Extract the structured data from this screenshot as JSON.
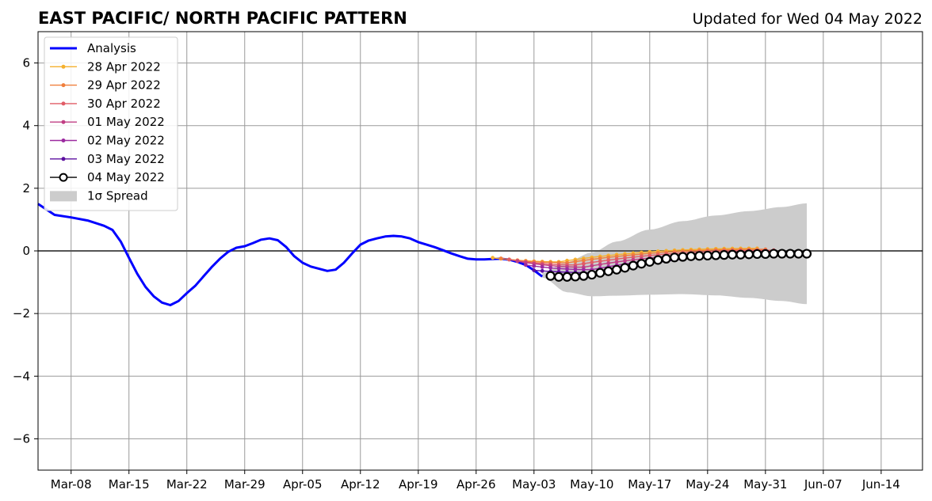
{
  "chart_data": {
    "type": "line",
    "title": "EAST PACIFIC/ NORTH PACIFIC PATTERN",
    "subtitle": "Updated for Wed 04 May 2022",
    "xlabel": "",
    "ylabel": "",
    "x_start": "2022-03-04",
    "x_end": "2022-06-19",
    "xticks": [
      "Mar-08",
      "Mar-15",
      "Mar-22",
      "Mar-29",
      "Apr-05",
      "Apr-12",
      "Apr-19",
      "Apr-26",
      "May-03",
      "May-10",
      "May-17",
      "May-24",
      "May-31",
      "Jun-07",
      "Jun-14"
    ],
    "xtick_dates": [
      "2022-03-08",
      "2022-03-15",
      "2022-03-22",
      "2022-03-29",
      "2022-04-05",
      "2022-04-12",
      "2022-04-19",
      "2022-04-26",
      "2022-05-03",
      "2022-05-10",
      "2022-05-17",
      "2022-05-24",
      "2022-05-31",
      "2022-06-07",
      "2022-06-14"
    ],
    "ylim": [
      -7,
      7
    ],
    "yticks": [
      -6,
      -4,
      -2,
      0,
      2,
      4,
      6
    ],
    "ytick_labels": [
      "−6",
      "−4",
      "−2",
      "0",
      "2",
      "4",
      "6"
    ],
    "grid": true,
    "legend_position": "top-left",
    "analysis": {
      "name": "Analysis",
      "color": "#0000ff",
      "dates": [
        "2022-03-04",
        "2022-03-06",
        "2022-03-08",
        "2022-03-10",
        "2022-03-12",
        "2022-03-13",
        "2022-03-14",
        "2022-03-15",
        "2022-03-16",
        "2022-03-17",
        "2022-03-18",
        "2022-03-19",
        "2022-03-20",
        "2022-03-21",
        "2022-03-22",
        "2022-03-23",
        "2022-03-24",
        "2022-03-25",
        "2022-03-26",
        "2022-03-27",
        "2022-03-28",
        "2022-03-29",
        "2022-03-30",
        "2022-03-31",
        "2022-04-01",
        "2022-04-02",
        "2022-04-03",
        "2022-04-04",
        "2022-04-05",
        "2022-04-06",
        "2022-04-07",
        "2022-04-08",
        "2022-04-09",
        "2022-04-10",
        "2022-04-11",
        "2022-04-12",
        "2022-04-13",
        "2022-04-14",
        "2022-04-15",
        "2022-04-16",
        "2022-04-17",
        "2022-04-18",
        "2022-04-19",
        "2022-04-20",
        "2022-04-21",
        "2022-04-22",
        "2022-04-23",
        "2022-04-24",
        "2022-04-25",
        "2022-04-26",
        "2022-04-27",
        "2022-04-28",
        "2022-04-29",
        "2022-04-30",
        "2022-05-01",
        "2022-05-02",
        "2022-05-03",
        "2022-05-04"
      ],
      "values": [
        1.5,
        1.15,
        1.07,
        0.97,
        0.8,
        0.67,
        0.3,
        -0.22,
        -0.73,
        -1.15,
        -1.45,
        -1.65,
        -1.73,
        -1.6,
        -1.35,
        -1.12,
        -0.82,
        -0.52,
        -0.25,
        -0.03,
        0.1,
        0.15,
        0.25,
        0.36,
        0.4,
        0.34,
        0.13,
        -0.17,
        -0.38,
        -0.5,
        -0.57,
        -0.64,
        -0.6,
        -0.38,
        -0.08,
        0.2,
        0.33,
        0.4,
        0.46,
        0.48,
        0.46,
        0.4,
        0.28,
        0.2,
        0.12,
        0.02,
        -0.08,
        -0.17,
        -0.25,
        -0.27,
        -0.27,
        -0.26,
        -0.25,
        -0.28,
        -0.35,
        -0.45,
        -0.62,
        -0.82
      ]
    },
    "forecasts": [
      {
        "name": "28 Apr 2022",
        "color": "#f5b12e",
        "start": "2022-04-28",
        "end": "2022-05-30",
        "start_value": -0.22,
        "min_value": -0.35,
        "end_value": 0.08
      },
      {
        "name": "29 Apr 2022",
        "color": "#f07f3c",
        "start": "2022-04-29",
        "end": "2022-05-31",
        "start_value": -0.24,
        "min_value": -0.38,
        "end_value": 0.05
      },
      {
        "name": "30 Apr 2022",
        "color": "#e15c66",
        "start": "2022-04-30",
        "end": "2022-06-01",
        "start_value": -0.28,
        "min_value": -0.45,
        "end_value": 0.02
      },
      {
        "name": "01 May 2022",
        "color": "#c13f84",
        "start": "2022-05-01",
        "end": "2022-06-02",
        "start_value": -0.33,
        "min_value": -0.52,
        "end_value": -0.02
      },
      {
        "name": "02 May 2022",
        "color": "#9c2aa0",
        "start": "2022-05-02",
        "end": "2022-06-03",
        "start_value": -0.45,
        "min_value": -0.6,
        "end_value": -0.05
      },
      {
        "name": "03 May 2022",
        "color": "#5c10a0",
        "start": "2022-05-03",
        "end": "2022-06-04",
        "start_value": -0.62,
        "min_value": -0.7,
        "end_value": -0.07
      },
      {
        "name": "04 May 2022",
        "color": "#000000",
        "start": "2022-05-05",
        "end": "2022-06-05",
        "values": [
          -0.8,
          -0.83,
          -0.83,
          -0.82,
          -0.8,
          -0.76,
          -0.7,
          -0.65,
          -0.6,
          -0.54,
          -0.47,
          -0.41,
          -0.35,
          -0.29,
          -0.25,
          -0.21,
          -0.19,
          -0.17,
          -0.16,
          -0.15,
          -0.14,
          -0.13,
          -0.12,
          -0.12,
          -0.11,
          -0.1,
          -0.1,
          -0.09,
          -0.09,
          -0.09,
          -0.09,
          -0.09
        ]
      }
    ],
    "spread": {
      "name": "1σ Spread",
      "color": "#cccccc",
      "dates": [
        "2022-05-04",
        "2022-05-07",
        "2022-05-10",
        "2022-05-13",
        "2022-05-17",
        "2022-05-21",
        "2022-05-25",
        "2022-05-29",
        "2022-06-02",
        "2022-06-05"
      ],
      "upper": [
        -0.7,
        -0.35,
        -0.05,
        0.3,
        0.68,
        0.95,
        1.13,
        1.27,
        1.4,
        1.52
      ],
      "lower": [
        -0.85,
        -1.32,
        -1.45,
        -1.43,
        -1.4,
        -1.38,
        -1.42,
        -1.5,
        -1.6,
        -1.7
      ]
    },
    "zero_line_color": "#555555"
  }
}
